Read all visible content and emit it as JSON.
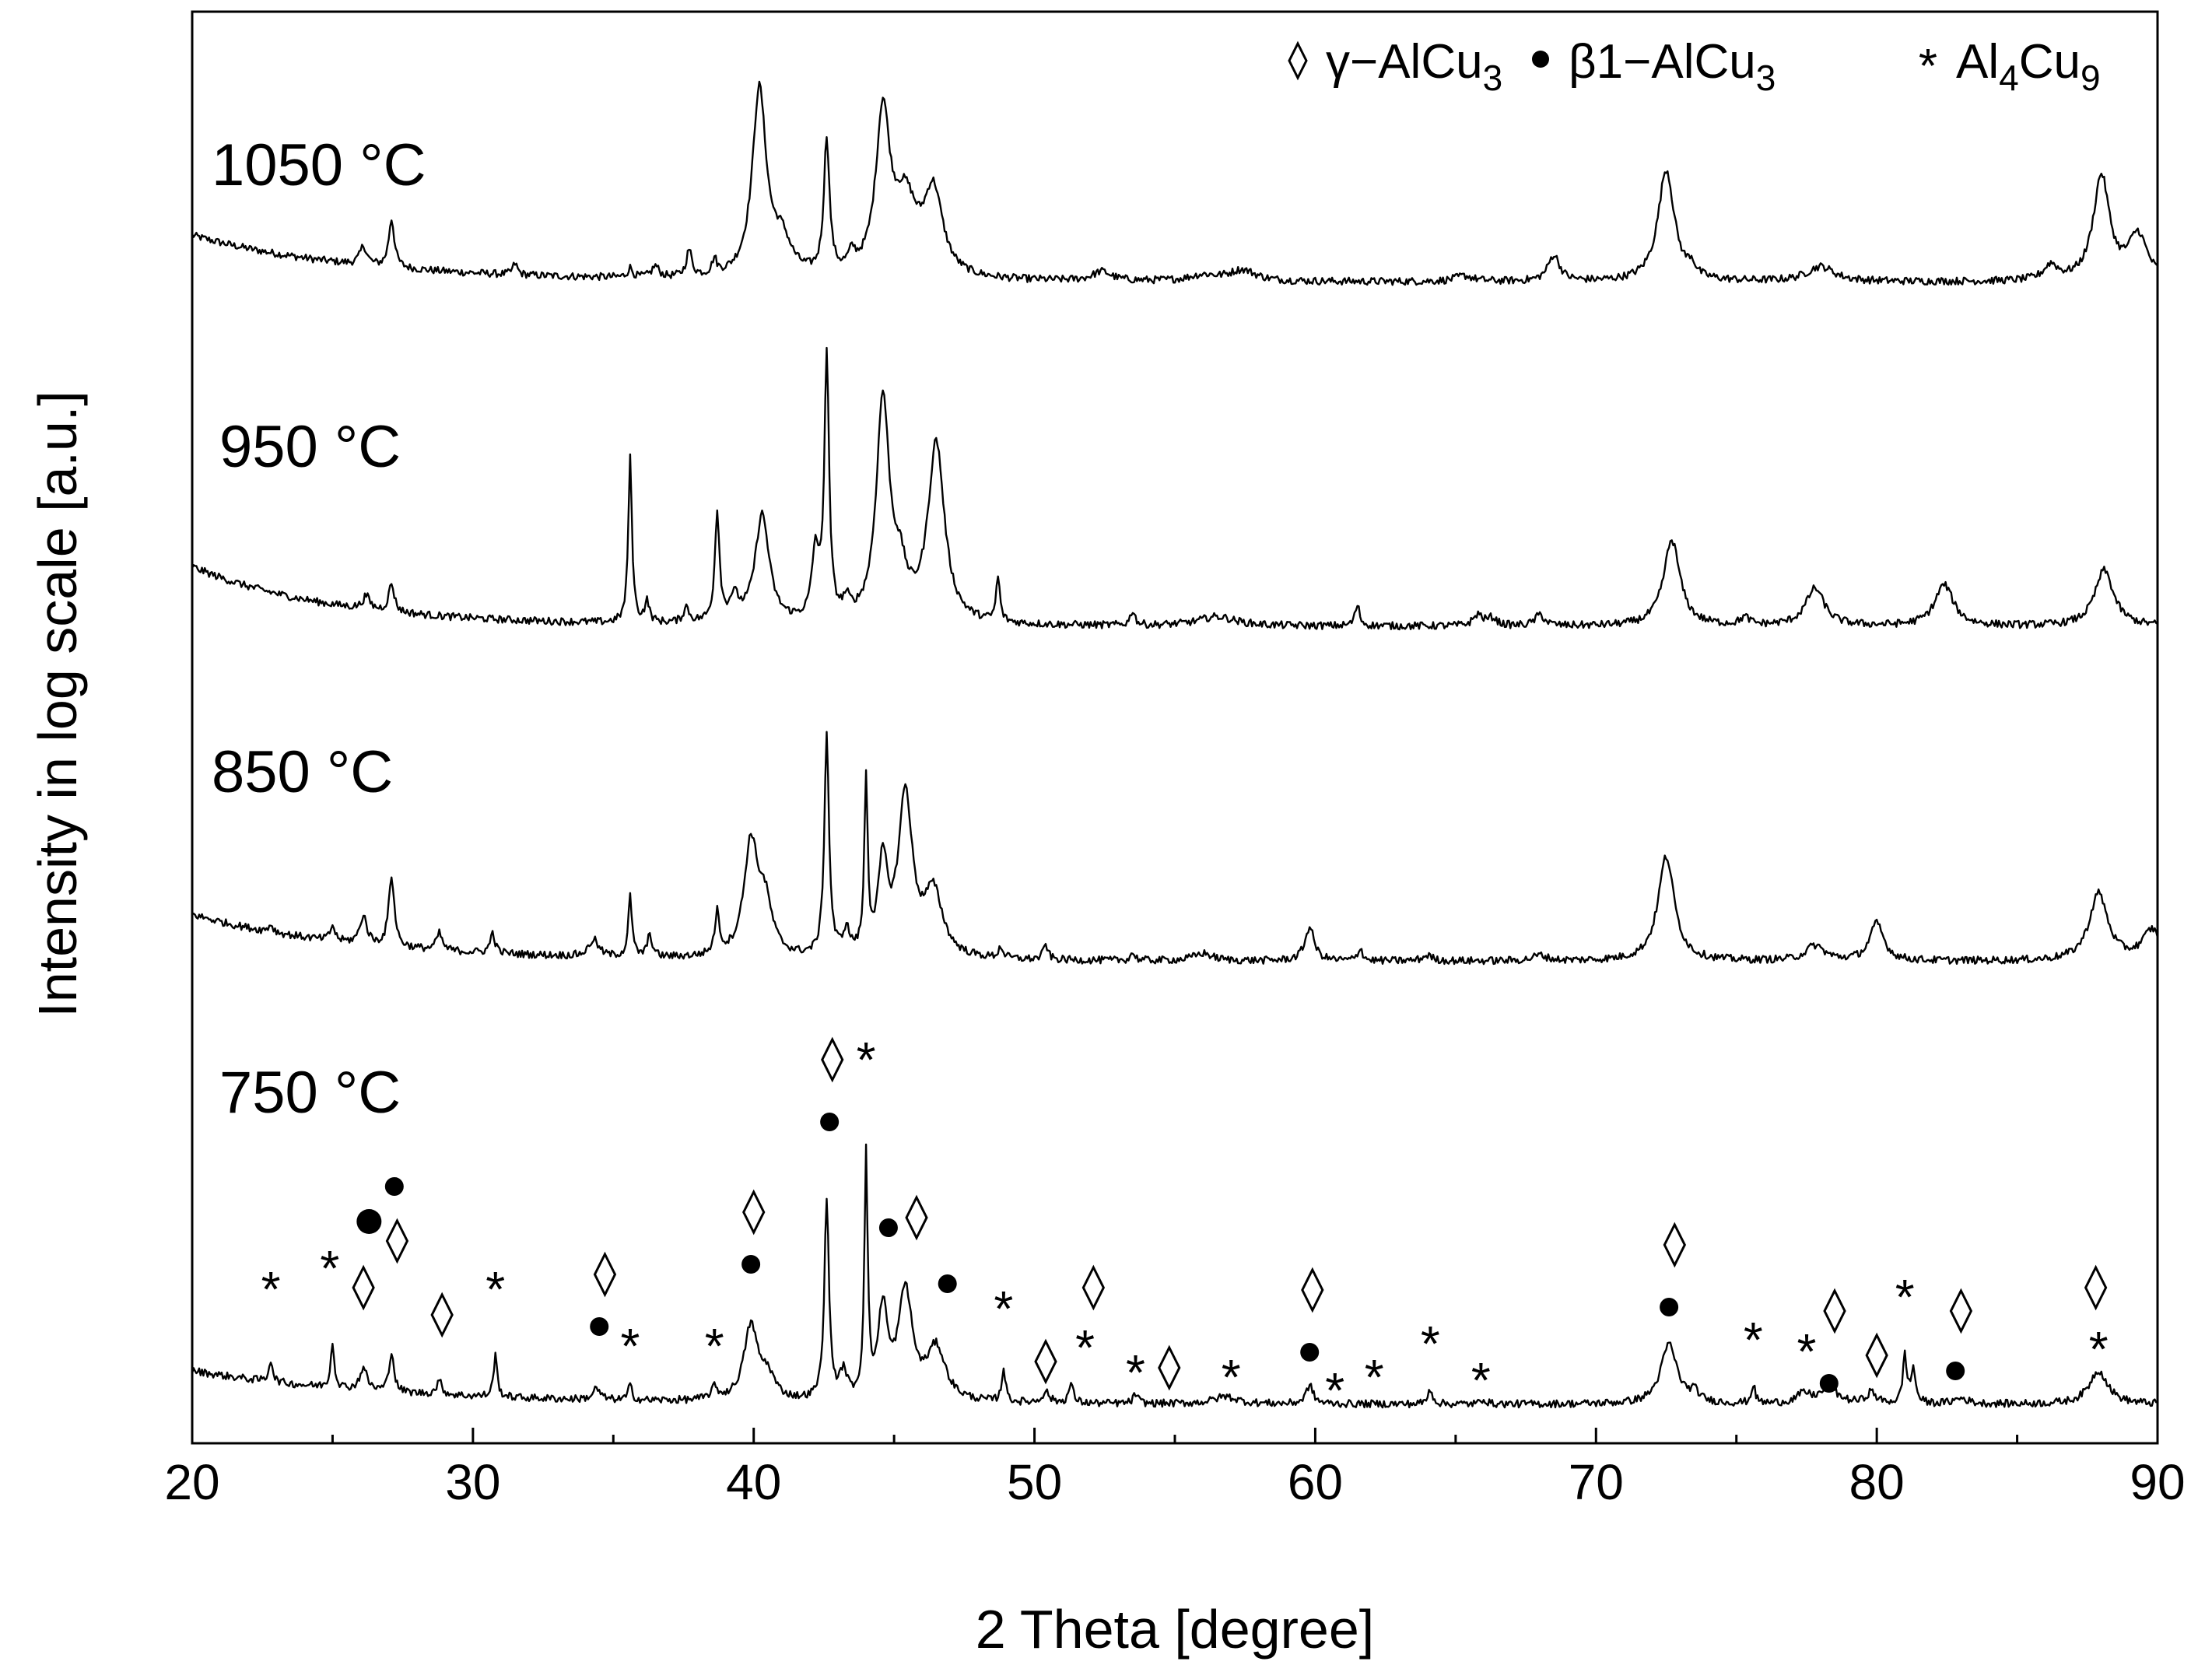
{
  "chart_data": {
    "type": "line",
    "xlabel": "2 Theta [degree]",
    "ylabel": "Intensity in log scale [a.u.]",
    "xlim": [
      20,
      90
    ],
    "xticks": [
      "20",
      "30",
      "40",
      "50",
      "60",
      "70",
      "80",
      "90"
    ],
    "grid": false,
    "legend_position": "top-right",
    "legend": [
      {
        "symbol": "diamond",
        "text": "γ−AlCu",
        "sub": "3"
      },
      {
        "symbol": "dot",
        "text": "β1−AlCu",
        "sub": "3"
      },
      {
        "symbol": "star",
        "text": "Al",
        "sub": "4",
        "text2": "Cu",
        "sub2": "9"
      }
    ],
    "series": [
      {
        "name": "1050 °C",
        "background": {
          "start": 26,
          "end": 1,
          "decay": 6
        },
        "peaks": [
          [
            26.1,
            10,
            0.15
          ],
          [
            27.1,
            26,
            0.12
          ],
          [
            31.5,
            6,
            0.1
          ],
          [
            35.6,
            5,
            0.1
          ],
          [
            36.5,
            6,
            0.15
          ],
          [
            37.7,
            14,
            0.12
          ],
          [
            38.6,
            8,
            0.1
          ],
          [
            40.2,
            100,
            0.3
          ],
          [
            41.0,
            18,
            0.4
          ],
          [
            42.6,
            72,
            0.12
          ],
          [
            43.5,
            8,
            0.15
          ],
          [
            44.6,
            85,
            0.3
          ],
          [
            45.4,
            38,
            0.5
          ],
          [
            46.4,
            44,
            0.4
          ],
          [
            52.4,
            5,
            0.4
          ],
          [
            56.0,
            3,
            0.6
          ],
          [
            57.4,
            6,
            0.6
          ],
          [
            65.3,
            3,
            0.4
          ],
          [
            68.5,
            14,
            0.25
          ],
          [
            72.5,
            60,
            0.35
          ],
          [
            73.4,
            6,
            0.15
          ],
          [
            78.0,
            8,
            0.6
          ],
          [
            86.2,
            8,
            0.3
          ],
          [
            88.0,
            56,
            0.35
          ],
          [
            89.3,
            24,
            0.4
          ]
        ]
      },
      {
        "name": "950 °C",
        "background": {
          "start": 34,
          "end": 2,
          "decay": 5
        },
        "peaks": [
          [
            26.2,
            7,
            0.15
          ],
          [
            27.1,
            15,
            0.12
          ],
          [
            35.6,
            88,
            0.08
          ],
          [
            36.2,
            11,
            0.1
          ],
          [
            37.6,
            8,
            0.12
          ],
          [
            38.7,
            58,
            0.1
          ],
          [
            39.3,
            12,
            0.2
          ],
          [
            40.3,
            58,
            0.3
          ],
          [
            42.2,
            36,
            0.15
          ],
          [
            42.6,
            140,
            0.1
          ],
          [
            43.3,
            8,
            0.15
          ],
          [
            44.6,
            118,
            0.28
          ],
          [
            45.2,
            22,
            0.3
          ],
          [
            46.5,
            96,
            0.35
          ],
          [
            48.7,
            24,
            0.08
          ],
          [
            53.5,
            8,
            0.1
          ],
          [
            56.5,
            5,
            0.8
          ],
          [
            61.5,
            11,
            0.1
          ],
          [
            65.8,
            6,
            0.2
          ],
          [
            66.3,
            4,
            0.2
          ],
          [
            68.0,
            6,
            0.2
          ],
          [
            72.7,
            46,
            0.35
          ],
          [
            75.3,
            4,
            0.2
          ],
          [
            77.8,
            20,
            0.4
          ],
          [
            82.4,
            22,
            0.4
          ],
          [
            88.1,
            30,
            0.4
          ]
        ]
      },
      {
        "name": "850 °C",
        "background": {
          "start": 26,
          "end": 1,
          "decay": 6
        },
        "peaks": [
          [
            22.8,
            4,
            0.1
          ],
          [
            25.0,
            8,
            0.1
          ],
          [
            26.1,
            15,
            0.15
          ],
          [
            27.1,
            38,
            0.12
          ],
          [
            28.8,
            9,
            0.12
          ],
          [
            30.7,
            11,
            0.1
          ],
          [
            34.3,
            9,
            0.2
          ],
          [
            35.6,
            32,
            0.08
          ],
          [
            36.3,
            12,
            0.1
          ],
          [
            38.7,
            22,
            0.1
          ],
          [
            39.9,
            60,
            0.3
          ],
          [
            40.4,
            26,
            0.3
          ],
          [
            42.6,
            118,
            0.1
          ],
          [
            43.3,
            12,
            0.15
          ],
          [
            44.0,
            92,
            0.07
          ],
          [
            44.6,
            48,
            0.2
          ],
          [
            45.4,
            86,
            0.3
          ],
          [
            46.4,
            34,
            0.4
          ],
          [
            48.8,
            6,
            0.1
          ],
          [
            50.4,
            8,
            0.1
          ],
          [
            53.5,
            4,
            0.1
          ],
          [
            56.0,
            4,
            0.4
          ],
          [
            59.8,
            18,
            0.2
          ],
          [
            61.6,
            7,
            0.1
          ],
          [
            64.0,
            3,
            0.2
          ],
          [
            68.0,
            3,
            0.3
          ],
          [
            72.5,
            56,
            0.35
          ],
          [
            77.8,
            8,
            0.4
          ],
          [
            80.0,
            20,
            0.3
          ],
          [
            87.9,
            36,
            0.4
          ],
          [
            89.8,
            16,
            0.4
          ]
        ]
      },
      {
        "name": "750 °C",
        "background": {
          "start": 18,
          "end": 0,
          "decay": 7
        },
        "peaks": [
          [
            22.8,
            12,
            0.08
          ],
          [
            25.0,
            24,
            0.08
          ],
          [
            26.1,
            12,
            0.15
          ],
          [
            27.1,
            22,
            0.1
          ],
          [
            28.8,
            7,
            0.12
          ],
          [
            30.8,
            22,
            0.08
          ],
          [
            34.4,
            6,
            0.15
          ],
          [
            35.6,
            8,
            0.08
          ],
          [
            38.6,
            6,
            0.15
          ],
          [
            39.9,
            40,
            0.3
          ],
          [
            40.5,
            12,
            0.3
          ],
          [
            42.6,
            106,
            0.1
          ],
          [
            43.2,
            14,
            0.15
          ],
          [
            44.0,
            128,
            0.07
          ],
          [
            44.6,
            48,
            0.2
          ],
          [
            45.4,
            58,
            0.3
          ],
          [
            46.5,
            28,
            0.4
          ],
          [
            48.9,
            18,
            0.08
          ],
          [
            50.4,
            6,
            0.15
          ],
          [
            51.3,
            10,
            0.1
          ],
          [
            53.6,
            5,
            0.1
          ],
          [
            56.8,
            4,
            0.5
          ],
          [
            59.8,
            10,
            0.15
          ],
          [
            64.1,
            8,
            0.1
          ],
          [
            66.0,
            3,
            0.1
          ],
          [
            72.6,
            32,
            0.35
          ],
          [
            73.5,
            5,
            0.2
          ],
          [
            75.6,
            10,
            0.08
          ],
          [
            77.4,
            5,
            0.3
          ],
          [
            78.3,
            8,
            0.4
          ],
          [
            79.8,
            6,
            0.2
          ],
          [
            81.0,
            26,
            0.08
          ],
          [
            81.3,
            18,
            0.1
          ],
          [
            83.0,
            3,
            0.3
          ],
          [
            87.9,
            18,
            0.4
          ]
        ]
      }
    ],
    "markers": [
      {
        "type": "star",
        "x": 22.8
      },
      {
        "type": "star",
        "x": 24.9
      },
      {
        "type": "diamond",
        "x": 26.1
      },
      {
        "type": "dot-large",
        "x": 26.3
      },
      {
        "type": "dot",
        "x": 27.2
      },
      {
        "type": "diamond",
        "x": 27.3
      },
      {
        "type": "diamond",
        "x": 28.9
      },
      {
        "type": "star",
        "x": 30.8
      },
      {
        "type": "dot",
        "x": 34.5
      },
      {
        "type": "diamond",
        "x": 34.7
      },
      {
        "type": "star",
        "x": 35.6
      },
      {
        "type": "star",
        "x": 38.6
      },
      {
        "type": "dot",
        "x": 39.9
      },
      {
        "type": "diamond",
        "x": 40.0
      },
      {
        "type": "dot",
        "x": 42.7
      },
      {
        "type": "diamond",
        "x": 42.8
      },
      {
        "type": "star",
        "x": 44.0
      },
      {
        "type": "dot",
        "x": 44.8
      },
      {
        "type": "diamond",
        "x": 45.8
      },
      {
        "type": "dot",
        "x": 46.9
      },
      {
        "type": "star",
        "x": 48.9
      },
      {
        "type": "diamond",
        "x": 50.4
      },
      {
        "type": "star",
        "x": 51.8
      },
      {
        "type": "diamond",
        "x": 52.1
      },
      {
        "type": "star",
        "x": 53.6
      },
      {
        "type": "diamond",
        "x": 54.8
      },
      {
        "type": "star",
        "x": 57.0
      },
      {
        "type": "dot",
        "x": 59.8
      },
      {
        "type": "diamond",
        "x": 59.9
      },
      {
        "type": "star",
        "x": 60.7
      },
      {
        "type": "star",
        "x": 62.1
      },
      {
        "type": "star",
        "x": 64.1
      },
      {
        "type": "star",
        "x": 65.9
      },
      {
        "type": "dot",
        "x": 72.6
      },
      {
        "type": "diamond",
        "x": 72.8
      },
      {
        "type": "star",
        "x": 75.6
      },
      {
        "type": "star",
        "x": 77.5
      },
      {
        "type": "dot",
        "x": 78.3
      },
      {
        "type": "diamond",
        "x": 78.5
      },
      {
        "type": "diamond",
        "x": 80.0
      },
      {
        "type": "star",
        "x": 81.0
      },
      {
        "type": "dot",
        "x": 82.8
      },
      {
        "type": "diamond",
        "x": 83.0
      },
      {
        "type": "diamond",
        "x": 87.8
      },
      {
        "type": "star",
        "x": 87.9
      }
    ]
  }
}
